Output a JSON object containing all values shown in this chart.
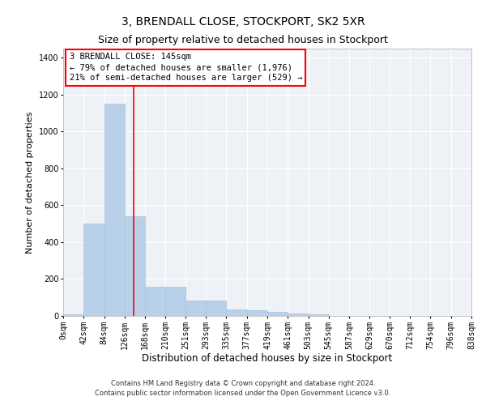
{
  "title": "3, BRENDALL CLOSE, STOCKPORT, SK2 5XR",
  "subtitle": "Size of property relative to detached houses in Stockport",
  "xlabel": "Distribution of detached houses by size in Stockport",
  "ylabel": "Number of detached properties",
  "bin_labels": [
    "0sqm",
    "42sqm",
    "84sqm",
    "126sqm",
    "168sqm",
    "210sqm",
    "251sqm",
    "293sqm",
    "335sqm",
    "377sqm",
    "419sqm",
    "461sqm",
    "503sqm",
    "545sqm",
    "587sqm",
    "629sqm",
    "670sqm",
    "712sqm",
    "754sqm",
    "796sqm",
    "838sqm"
  ],
  "bar_heights": [
    10,
    500,
    1150,
    540,
    160,
    160,
    85,
    85,
    35,
    30,
    20,
    15,
    10,
    0,
    0,
    0,
    0,
    0,
    0,
    0
  ],
  "bar_color": "#b8d0e8",
  "bar_edgecolor": "#a8c4e0",
  "red_line_x": 145,
  "bin_edges": [
    0,
    42,
    84,
    126,
    168,
    210,
    251,
    293,
    335,
    377,
    419,
    461,
    503,
    545,
    587,
    629,
    670,
    712,
    754,
    796,
    838
  ],
  "annotation_box_text": "3 BRENDALL CLOSE: 145sqm\n← 79% of detached houses are smaller (1,976)\n21% of semi-detached houses are larger (529) →",
  "ylim": [
    0,
    1450
  ],
  "yticks": [
    0,
    200,
    400,
    600,
    800,
    1000,
    1200,
    1400
  ],
  "footer_line1": "Contains HM Land Registry data © Crown copyright and database right 2024.",
  "footer_line2": "Contains public sector information licensed under the Open Government Licence v3.0.",
  "background_color": "#eef2f7",
  "grid_color": "#ffffff",
  "title_fontsize": 10,
  "subtitle_fontsize": 9,
  "annotation_fontsize": 7.5,
  "ylabel_fontsize": 8,
  "xlabel_fontsize": 8.5,
  "tick_fontsize": 7,
  "footer_fontsize": 6
}
